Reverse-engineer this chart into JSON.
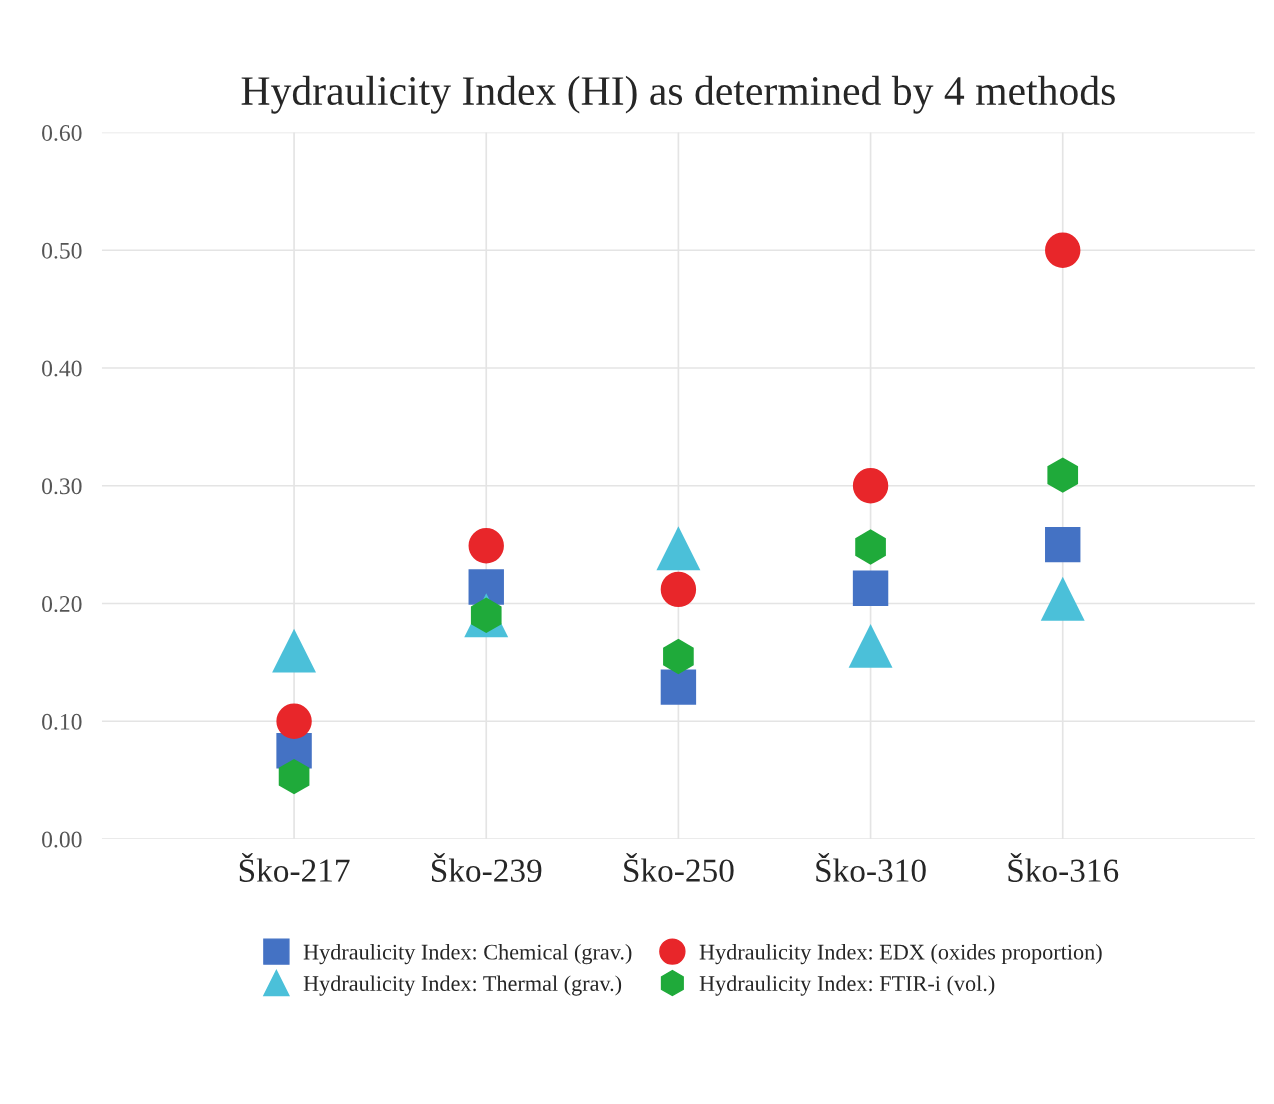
{
  "chart_data": {
    "type": "scatter",
    "title": "Hydraulicity Index (HI) as determined by 4 methods",
    "categories": [
      "Ško-217",
      "Ško-239",
      "Ško-250",
      "Ško-310",
      "Ško-316"
    ],
    "series": [
      {
        "name": "Hydraulicity Index: Chemical (grav.)",
        "color": "#4472c4",
        "marker": "square",
        "values": [
          0.075,
          0.214,
          0.129,
          0.213,
          0.25
        ]
      },
      {
        "name": "Hydraulicity Index: EDX (oxides proportion)",
        "color": "#e8262a",
        "marker": "circle",
        "values": [
          0.1,
          0.249,
          0.212,
          0.3,
          0.5
        ]
      },
      {
        "name": "Hydraulicity Index: Thermal (grav.)",
        "color": "#4bc0d9",
        "marker": "triangle",
        "values": [
          0.16,
          0.19,
          0.247,
          0.164,
          0.204
        ]
      },
      {
        "name": "Hydraulicity Index: FTIR-i (vol.)",
        "color": "#1faa3a",
        "values": [
          0.053,
          0.19,
          0.155,
          0.248,
          0.309
        ]
      }
    ],
    "ylim": [
      0,
      0.6
    ],
    "yticks": [
      {
        "value": 0,
        "label": "0.00"
      },
      {
        "value": 0.1,
        "label": "0.10"
      },
      {
        "value": 0.2,
        "label": "0.20"
      },
      {
        "value": 0.3,
        "label": "0.30"
      },
      {
        "value": 0.4,
        "label": "0.40"
      },
      {
        "value": 0.5,
        "label": "0.50"
      },
      {
        "value": 0.6,
        "label": "0.60"
      }
    ],
    "grid": true,
    "legend": "bottom"
  }
}
